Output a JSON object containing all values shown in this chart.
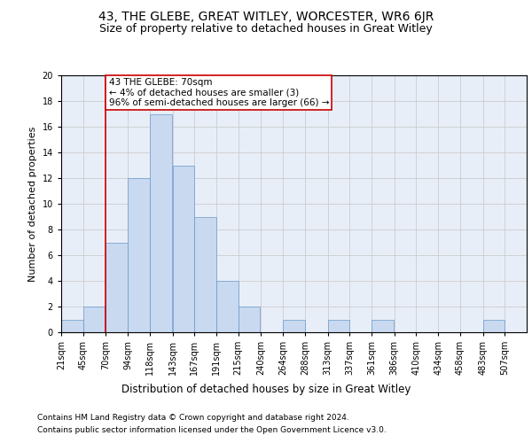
{
  "title": "43, THE GLEBE, GREAT WITLEY, WORCESTER, WR6 6JR",
  "subtitle": "Size of property relative to detached houses in Great Witley",
  "xlabel": "Distribution of detached houses by size in Great Witley",
  "ylabel": "Number of detached properties",
  "bins": [
    21,
    45,
    70,
    94,
    118,
    143,
    167,
    191,
    215,
    240,
    264,
    288,
    313,
    337,
    361,
    386,
    410,
    434,
    458,
    483,
    507
  ],
  "counts": [
    1,
    2,
    7,
    12,
    17,
    13,
    9,
    4,
    2,
    0,
    1,
    0,
    1,
    0,
    1,
    0,
    0,
    0,
    0,
    1,
    0
  ],
  "bar_color": "#c9d9f0",
  "bar_edge_color": "#6699cc",
  "red_line_bin_index": 2,
  "annotation_text": "43 THE GLEBE: 70sqm\n← 4% of detached houses are smaller (3)\n96% of semi-detached houses are larger (66) →",
  "annotation_box_color": "#ffffff",
  "annotation_box_edge": "#cc0000",
  "ylim": [
    0,
    20
  ],
  "yticks": [
    0,
    2,
    4,
    6,
    8,
    10,
    12,
    14,
    16,
    18,
    20
  ],
  "grid_color": "#cccccc",
  "background_color": "#e8eef8",
  "footer_line1": "Contains HM Land Registry data © Crown copyright and database right 2024.",
  "footer_line2": "Contains public sector information licensed under the Open Government Licence v3.0.",
  "title_fontsize": 10,
  "subtitle_fontsize": 9,
  "xlabel_fontsize": 8.5,
  "ylabel_fontsize": 8,
  "tick_fontsize": 7,
  "annotation_fontsize": 7.5,
  "footer_fontsize": 6.5
}
